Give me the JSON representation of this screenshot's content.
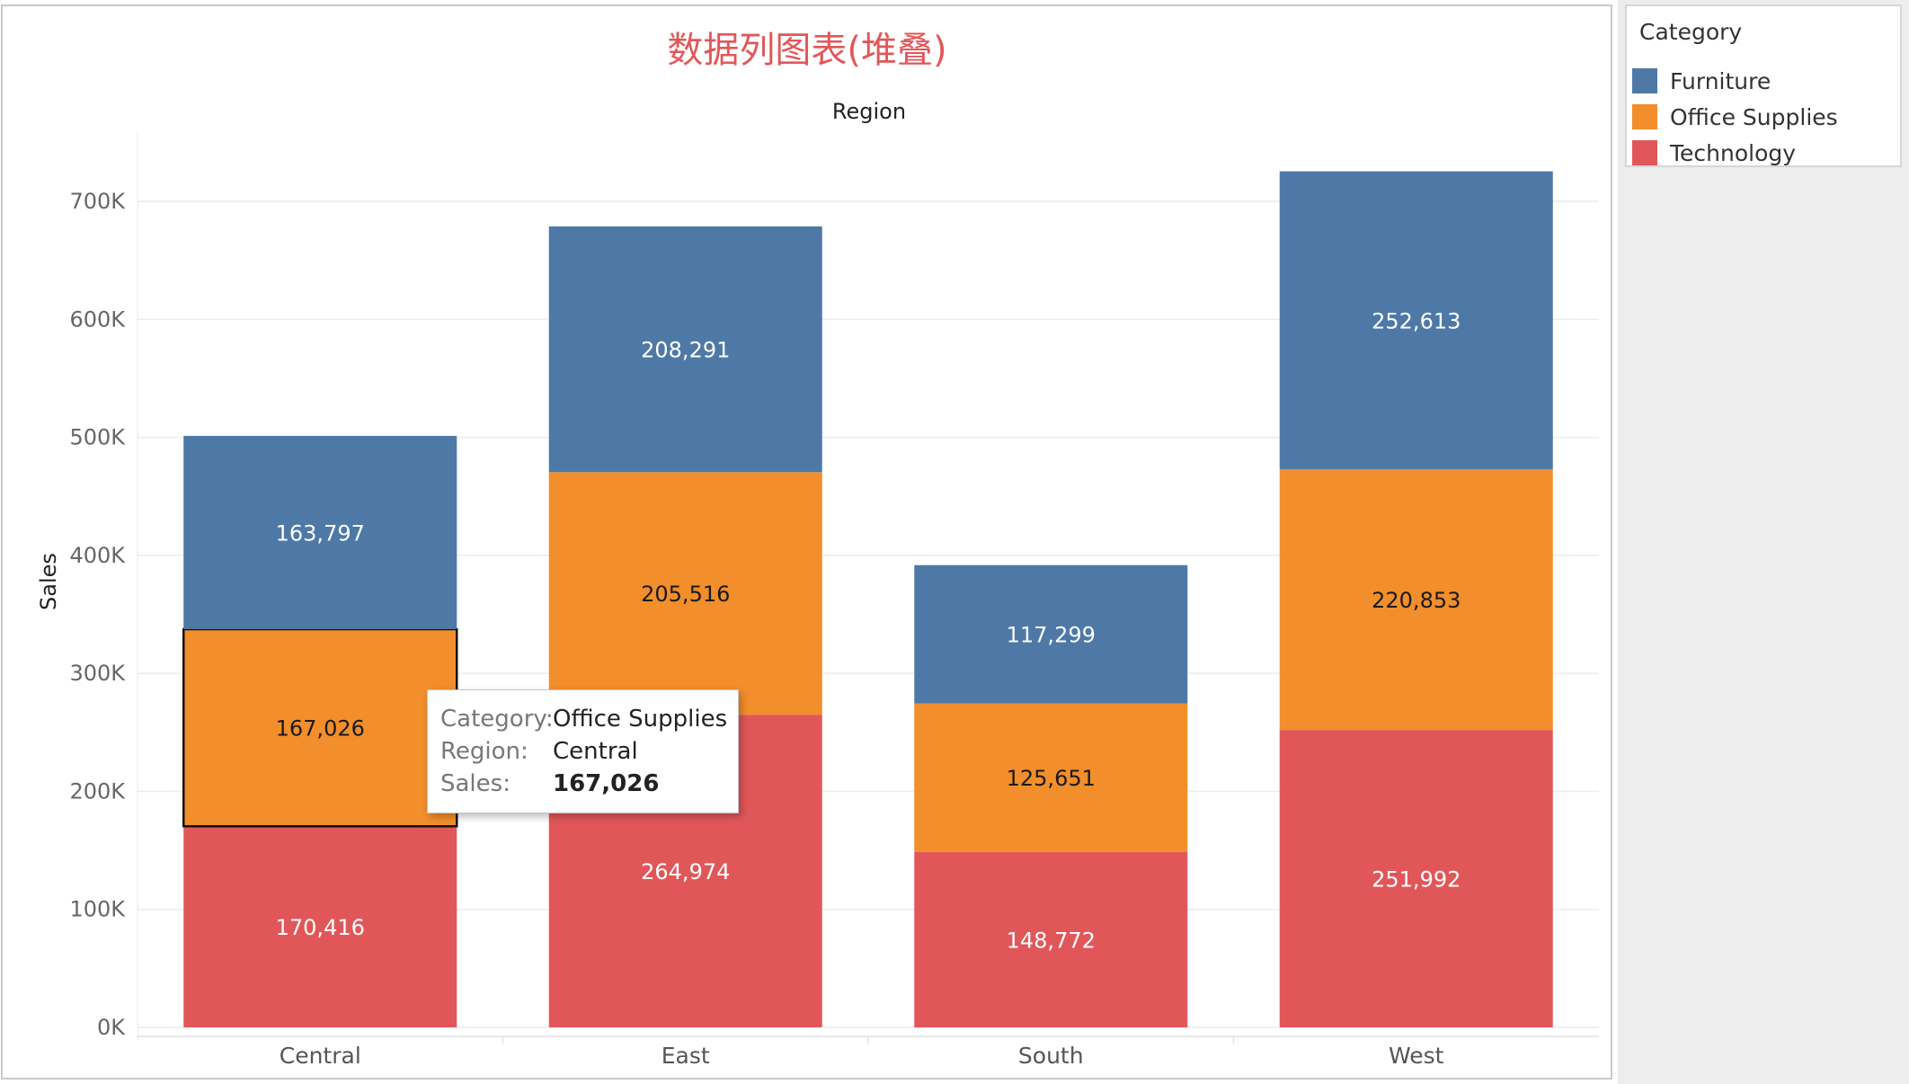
{
  "legend": {
    "title": "Category",
    "items": [
      {
        "label": "Furniture",
        "color": "#4e79a7"
      },
      {
        "label": "Office Supplies",
        "color": "#f28e2b"
      },
      {
        "label": "Technology",
        "color": "#e15759"
      }
    ]
  },
  "tooltip": {
    "rows": [
      {
        "label": "Category:",
        "value": "Office Supplies"
      },
      {
        "label": "Region:",
        "value": "Central"
      },
      {
        "label": "Sales:",
        "value": "167,026"
      }
    ]
  },
  "chart_data": {
    "type": "bar",
    "stacked": true,
    "title": "数据列图表(堆叠)",
    "title_color": "#e15759",
    "xlabel": "Region",
    "ylabel": "Sales",
    "categories": [
      "Central",
      "East",
      "South",
      "West"
    ],
    "series": [
      {
        "name": "Technology",
        "color": "#e15759",
        "values": [
          170416,
          264974,
          148772,
          251992
        ]
      },
      {
        "name": "Office Supplies",
        "color": "#f28e2b",
        "values": [
          167026,
          205516,
          125651,
          220853
        ]
      },
      {
        "name": "Furniture",
        "color": "#4e79a7",
        "values": [
          163797,
          208291,
          117299,
          252613
        ]
      }
    ],
    "data_labels": [
      [
        "170,416",
        "264,974",
        "148,772",
        "251,992"
      ],
      [
        "167,026",
        "205,516",
        "125,651",
        "220,853"
      ],
      [
        "163,797",
        "208,291",
        "117,299",
        "252,613"
      ]
    ],
    "yticks": [
      {
        "value": 0,
        "label": "0K"
      },
      {
        "value": 100000,
        "label": "100K"
      },
      {
        "value": 200000,
        "label": "200K"
      },
      {
        "value": 300000,
        "label": "300K"
      },
      {
        "value": 400000,
        "label": "400K"
      },
      {
        "value": 500000,
        "label": "500K"
      },
      {
        "value": 600000,
        "label": "600K"
      },
      {
        "value": 700000,
        "label": "700K"
      }
    ],
    "ylim": [
      0,
      700000
    ],
    "grid": true,
    "highlighted": {
      "category": "Central",
      "series": "Office Supplies"
    }
  }
}
